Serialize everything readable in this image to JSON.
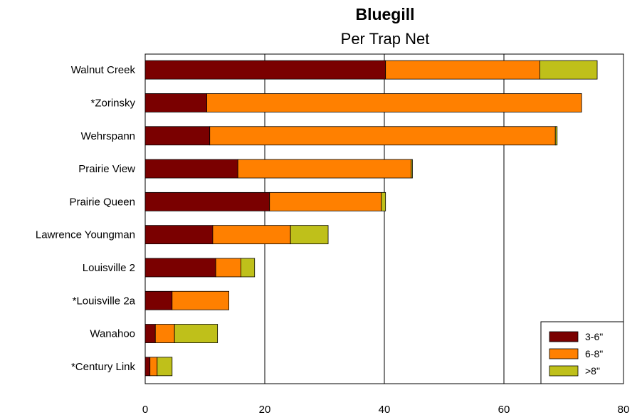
{
  "chart_data": {
    "type": "bar",
    "orientation": "horizontal",
    "stacked": true,
    "title": "Bluegill",
    "subtitle": "Per Trap Net",
    "categories": [
      "Walnut Creek",
      "*Zorinsky",
      "Wehrspann",
      "Prairie View",
      "Prairie Queen",
      "Lawrence Youngman",
      "Louisville 2",
      "*Louisville 2a",
      "Wanahoo",
      "*Century Link"
    ],
    "series": [
      {
        "name": "3-6\"",
        "color": "#7a0000",
        "values": [
          40.2,
          10.3,
          10.8,
          15.5,
          20.8,
          11.3,
          11.8,
          4.5,
          1.7,
          0.8
        ]
      },
      {
        "name": "6-8\"",
        "color": "#ff8000",
        "values": [
          25.8,
          62.7,
          57.8,
          29.0,
          18.7,
          13.0,
          4.2,
          9.5,
          3.2,
          1.2
        ]
      },
      {
        "name": ">8\"",
        "color": "#bfc01a",
        "values": [
          9.6,
          0,
          0.3,
          0.2,
          0.7,
          6.3,
          2.3,
          0,
          7.2,
          2.5
        ]
      }
    ],
    "xlim": [
      0,
      80
    ],
    "xticks": [
      0,
      20,
      40,
      60,
      80
    ],
    "grid": "vertical",
    "legend_position": "bottom-right"
  }
}
